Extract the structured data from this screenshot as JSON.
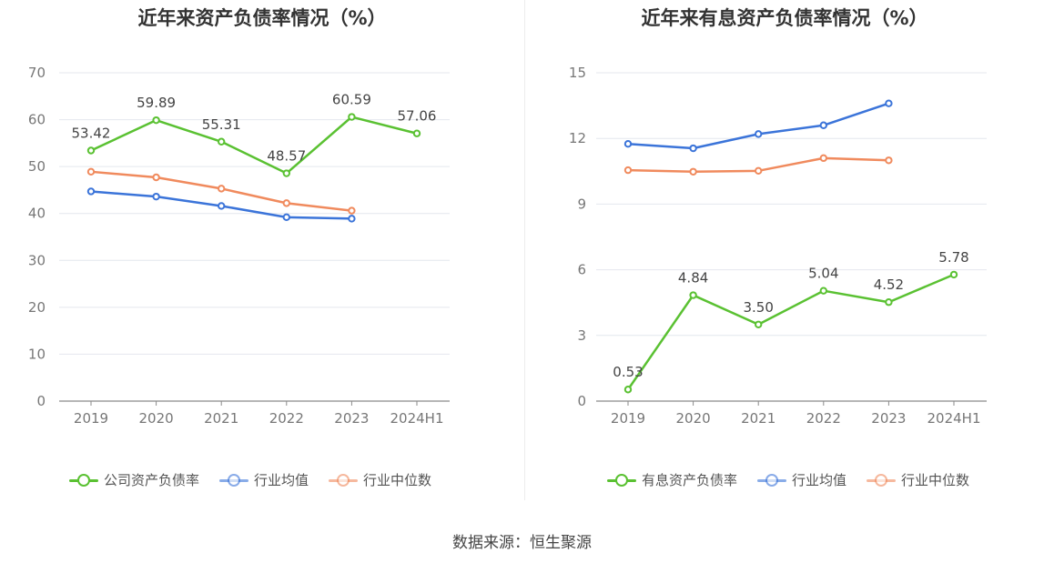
{
  "footer": {
    "source": "数据来源：恒生聚源"
  },
  "chart_data": [
    {
      "type": "line",
      "title": "近年来资产负债率情况（%）",
      "categories": [
        "2019",
        "2020",
        "2021",
        "2022",
        "2023",
        "2024H1"
      ],
      "ylim": [
        0,
        70
      ],
      "yticks": [
        0,
        10,
        20,
        30,
        40,
        50,
        60,
        70
      ],
      "grid": true,
      "legend_position": "bottom",
      "series": [
        {
          "name": "公司资产负债率",
          "color": "#5ac132",
          "values": [
            53.42,
            59.89,
            55.31,
            48.57,
            60.59,
            57.06
          ],
          "labels": [
            "53.42",
            "59.89",
            "55.31",
            "48.57",
            "60.59",
            "57.06"
          ]
        },
        {
          "name": "行业均值",
          "color": "#3b74d9",
          "values": [
            44.7,
            43.6,
            41.6,
            39.2,
            38.9,
            null
          ]
        },
        {
          "name": "行业中位数",
          "color": "#f08a5d",
          "values": [
            48.9,
            47.7,
            45.3,
            42.2,
            40.6,
            null
          ]
        }
      ]
    },
    {
      "type": "line",
      "title": "近年来有息资产负债率情况（%）",
      "categories": [
        "2019",
        "2020",
        "2021",
        "2022",
        "2023",
        "2024H1"
      ],
      "ylim": [
        0,
        15
      ],
      "yticks": [
        0,
        3,
        6,
        9,
        12,
        15
      ],
      "grid": true,
      "legend_position": "bottom",
      "series": [
        {
          "name": "有息资产负债率",
          "color": "#5ac132",
          "values": [
            0.53,
            4.84,
            3.5,
            5.04,
            4.52,
            5.78
          ],
          "labels": [
            "0.53",
            "4.84",
            "3.50",
            "5.04",
            "4.52",
            "5.78"
          ]
        },
        {
          "name": "行业均值",
          "color": "#3b74d9",
          "values": [
            11.75,
            11.55,
            12.2,
            12.6,
            13.6,
            null
          ]
        },
        {
          "name": "行业中位数",
          "color": "#f08a5d",
          "values": [
            10.55,
            10.48,
            10.52,
            11.1,
            11.0,
            null
          ]
        }
      ]
    }
  ]
}
